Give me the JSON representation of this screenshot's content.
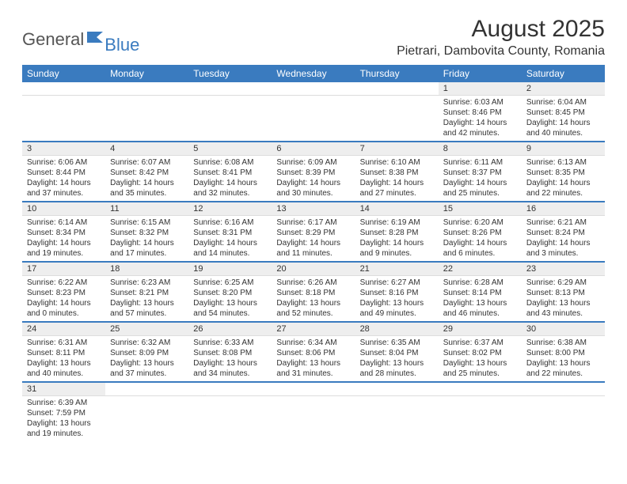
{
  "logo": {
    "part1": "General",
    "part2": "Blue"
  },
  "title": "August 2025",
  "location": "Pietrari, Dambovita County, Romania",
  "colors": {
    "header_bg": "#3a7bbf",
    "header_text": "#ffffff",
    "daynum_bg": "#eeeeee",
    "text": "#333333",
    "row_border": "#3a7bbf"
  },
  "fonts": {
    "title_size": 30,
    "location_size": 16,
    "header_size": 12,
    "daynum_size": 11,
    "cell_size": 10
  },
  "day_headers": [
    "Sunday",
    "Monday",
    "Tuesday",
    "Wednesday",
    "Thursday",
    "Friday",
    "Saturday"
  ],
  "weeks": [
    {
      "nums": [
        "",
        "",
        "",
        "",
        "",
        "1",
        "2"
      ],
      "cells": [
        null,
        null,
        null,
        null,
        null,
        {
          "sunrise": "Sunrise: 6:03 AM",
          "sunset": "Sunset: 8:46 PM",
          "daylight": "Daylight: 14 hours and 42 minutes."
        },
        {
          "sunrise": "Sunrise: 6:04 AM",
          "sunset": "Sunset: 8:45 PM",
          "daylight": "Daylight: 14 hours and 40 minutes."
        }
      ]
    },
    {
      "nums": [
        "3",
        "4",
        "5",
        "6",
        "7",
        "8",
        "9"
      ],
      "cells": [
        {
          "sunrise": "Sunrise: 6:06 AM",
          "sunset": "Sunset: 8:44 PM",
          "daylight": "Daylight: 14 hours and 37 minutes."
        },
        {
          "sunrise": "Sunrise: 6:07 AM",
          "sunset": "Sunset: 8:42 PM",
          "daylight": "Daylight: 14 hours and 35 minutes."
        },
        {
          "sunrise": "Sunrise: 6:08 AM",
          "sunset": "Sunset: 8:41 PM",
          "daylight": "Daylight: 14 hours and 32 minutes."
        },
        {
          "sunrise": "Sunrise: 6:09 AM",
          "sunset": "Sunset: 8:39 PM",
          "daylight": "Daylight: 14 hours and 30 minutes."
        },
        {
          "sunrise": "Sunrise: 6:10 AM",
          "sunset": "Sunset: 8:38 PM",
          "daylight": "Daylight: 14 hours and 27 minutes."
        },
        {
          "sunrise": "Sunrise: 6:11 AM",
          "sunset": "Sunset: 8:37 PM",
          "daylight": "Daylight: 14 hours and 25 minutes."
        },
        {
          "sunrise": "Sunrise: 6:13 AM",
          "sunset": "Sunset: 8:35 PM",
          "daylight": "Daylight: 14 hours and 22 minutes."
        }
      ]
    },
    {
      "nums": [
        "10",
        "11",
        "12",
        "13",
        "14",
        "15",
        "16"
      ],
      "cells": [
        {
          "sunrise": "Sunrise: 6:14 AM",
          "sunset": "Sunset: 8:34 PM",
          "daylight": "Daylight: 14 hours and 19 minutes."
        },
        {
          "sunrise": "Sunrise: 6:15 AM",
          "sunset": "Sunset: 8:32 PM",
          "daylight": "Daylight: 14 hours and 17 minutes."
        },
        {
          "sunrise": "Sunrise: 6:16 AM",
          "sunset": "Sunset: 8:31 PM",
          "daylight": "Daylight: 14 hours and 14 minutes."
        },
        {
          "sunrise": "Sunrise: 6:17 AM",
          "sunset": "Sunset: 8:29 PM",
          "daylight": "Daylight: 14 hours and 11 minutes."
        },
        {
          "sunrise": "Sunrise: 6:19 AM",
          "sunset": "Sunset: 8:28 PM",
          "daylight": "Daylight: 14 hours and 9 minutes."
        },
        {
          "sunrise": "Sunrise: 6:20 AM",
          "sunset": "Sunset: 8:26 PM",
          "daylight": "Daylight: 14 hours and 6 minutes."
        },
        {
          "sunrise": "Sunrise: 6:21 AM",
          "sunset": "Sunset: 8:24 PM",
          "daylight": "Daylight: 14 hours and 3 minutes."
        }
      ]
    },
    {
      "nums": [
        "17",
        "18",
        "19",
        "20",
        "21",
        "22",
        "23"
      ],
      "cells": [
        {
          "sunrise": "Sunrise: 6:22 AM",
          "sunset": "Sunset: 8:23 PM",
          "daylight": "Daylight: 14 hours and 0 minutes."
        },
        {
          "sunrise": "Sunrise: 6:23 AM",
          "sunset": "Sunset: 8:21 PM",
          "daylight": "Daylight: 13 hours and 57 minutes."
        },
        {
          "sunrise": "Sunrise: 6:25 AM",
          "sunset": "Sunset: 8:20 PM",
          "daylight": "Daylight: 13 hours and 54 minutes."
        },
        {
          "sunrise": "Sunrise: 6:26 AM",
          "sunset": "Sunset: 8:18 PM",
          "daylight": "Daylight: 13 hours and 52 minutes."
        },
        {
          "sunrise": "Sunrise: 6:27 AM",
          "sunset": "Sunset: 8:16 PM",
          "daylight": "Daylight: 13 hours and 49 minutes."
        },
        {
          "sunrise": "Sunrise: 6:28 AM",
          "sunset": "Sunset: 8:14 PM",
          "daylight": "Daylight: 13 hours and 46 minutes."
        },
        {
          "sunrise": "Sunrise: 6:29 AM",
          "sunset": "Sunset: 8:13 PM",
          "daylight": "Daylight: 13 hours and 43 minutes."
        }
      ]
    },
    {
      "nums": [
        "24",
        "25",
        "26",
        "27",
        "28",
        "29",
        "30"
      ],
      "cells": [
        {
          "sunrise": "Sunrise: 6:31 AM",
          "sunset": "Sunset: 8:11 PM",
          "daylight": "Daylight: 13 hours and 40 minutes."
        },
        {
          "sunrise": "Sunrise: 6:32 AM",
          "sunset": "Sunset: 8:09 PM",
          "daylight": "Daylight: 13 hours and 37 minutes."
        },
        {
          "sunrise": "Sunrise: 6:33 AM",
          "sunset": "Sunset: 8:08 PM",
          "daylight": "Daylight: 13 hours and 34 minutes."
        },
        {
          "sunrise": "Sunrise: 6:34 AM",
          "sunset": "Sunset: 8:06 PM",
          "daylight": "Daylight: 13 hours and 31 minutes."
        },
        {
          "sunrise": "Sunrise: 6:35 AM",
          "sunset": "Sunset: 8:04 PM",
          "daylight": "Daylight: 13 hours and 28 minutes."
        },
        {
          "sunrise": "Sunrise: 6:37 AM",
          "sunset": "Sunset: 8:02 PM",
          "daylight": "Daylight: 13 hours and 25 minutes."
        },
        {
          "sunrise": "Sunrise: 6:38 AM",
          "sunset": "Sunset: 8:00 PM",
          "daylight": "Daylight: 13 hours and 22 minutes."
        }
      ]
    },
    {
      "nums": [
        "31",
        "",
        "",
        "",
        "",
        "",
        ""
      ],
      "cells": [
        {
          "sunrise": "Sunrise: 6:39 AM",
          "sunset": "Sunset: 7:59 PM",
          "daylight": "Daylight: 13 hours and 19 minutes."
        },
        null,
        null,
        null,
        null,
        null,
        null
      ]
    }
  ]
}
